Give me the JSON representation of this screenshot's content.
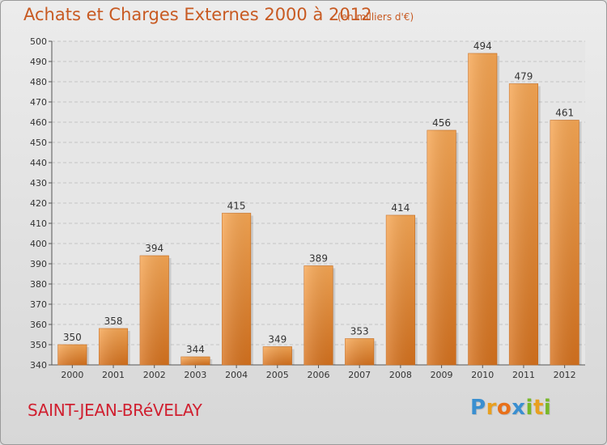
{
  "title": "Achats et Charges Externes 2000 à 2012",
  "subtitle": "(en milliers d'€)",
  "city": "SAINT-JEAN-BRéVELAY",
  "logo": {
    "letters": [
      "P",
      "r",
      "o",
      "x",
      "i",
      "t",
      "i"
    ],
    "colors": [
      "#3a8fd0",
      "#e8a020",
      "#e8701a",
      "#3a8fd0",
      "#78b828",
      "#e8a020",
      "#78b828"
    ]
  },
  "colors": {
    "title": "#c85a22",
    "city": "#d02030",
    "bar_light": "#f6a24f",
    "bar_dark": "#d8741f"
  },
  "chart_data": {
    "type": "bar",
    "title": "Achats et Charges Externes 2000 à 2012",
    "subtitle": "(en milliers d'€)",
    "categories": [
      "2000",
      "2001",
      "2002",
      "2003",
      "2004",
      "2005",
      "2006",
      "2007",
      "2008",
      "2009",
      "2010",
      "2011",
      "2012"
    ],
    "values": [
      350,
      358,
      394,
      344,
      415,
      349,
      389,
      353,
      414,
      456,
      494,
      479,
      461
    ],
    "ylim": [
      340,
      500
    ],
    "yticks": [
      340,
      350,
      360,
      370,
      380,
      390,
      400,
      410,
      420,
      430,
      440,
      450,
      460,
      470,
      480,
      490,
      500
    ],
    "grid": true,
    "data_labels": true
  }
}
